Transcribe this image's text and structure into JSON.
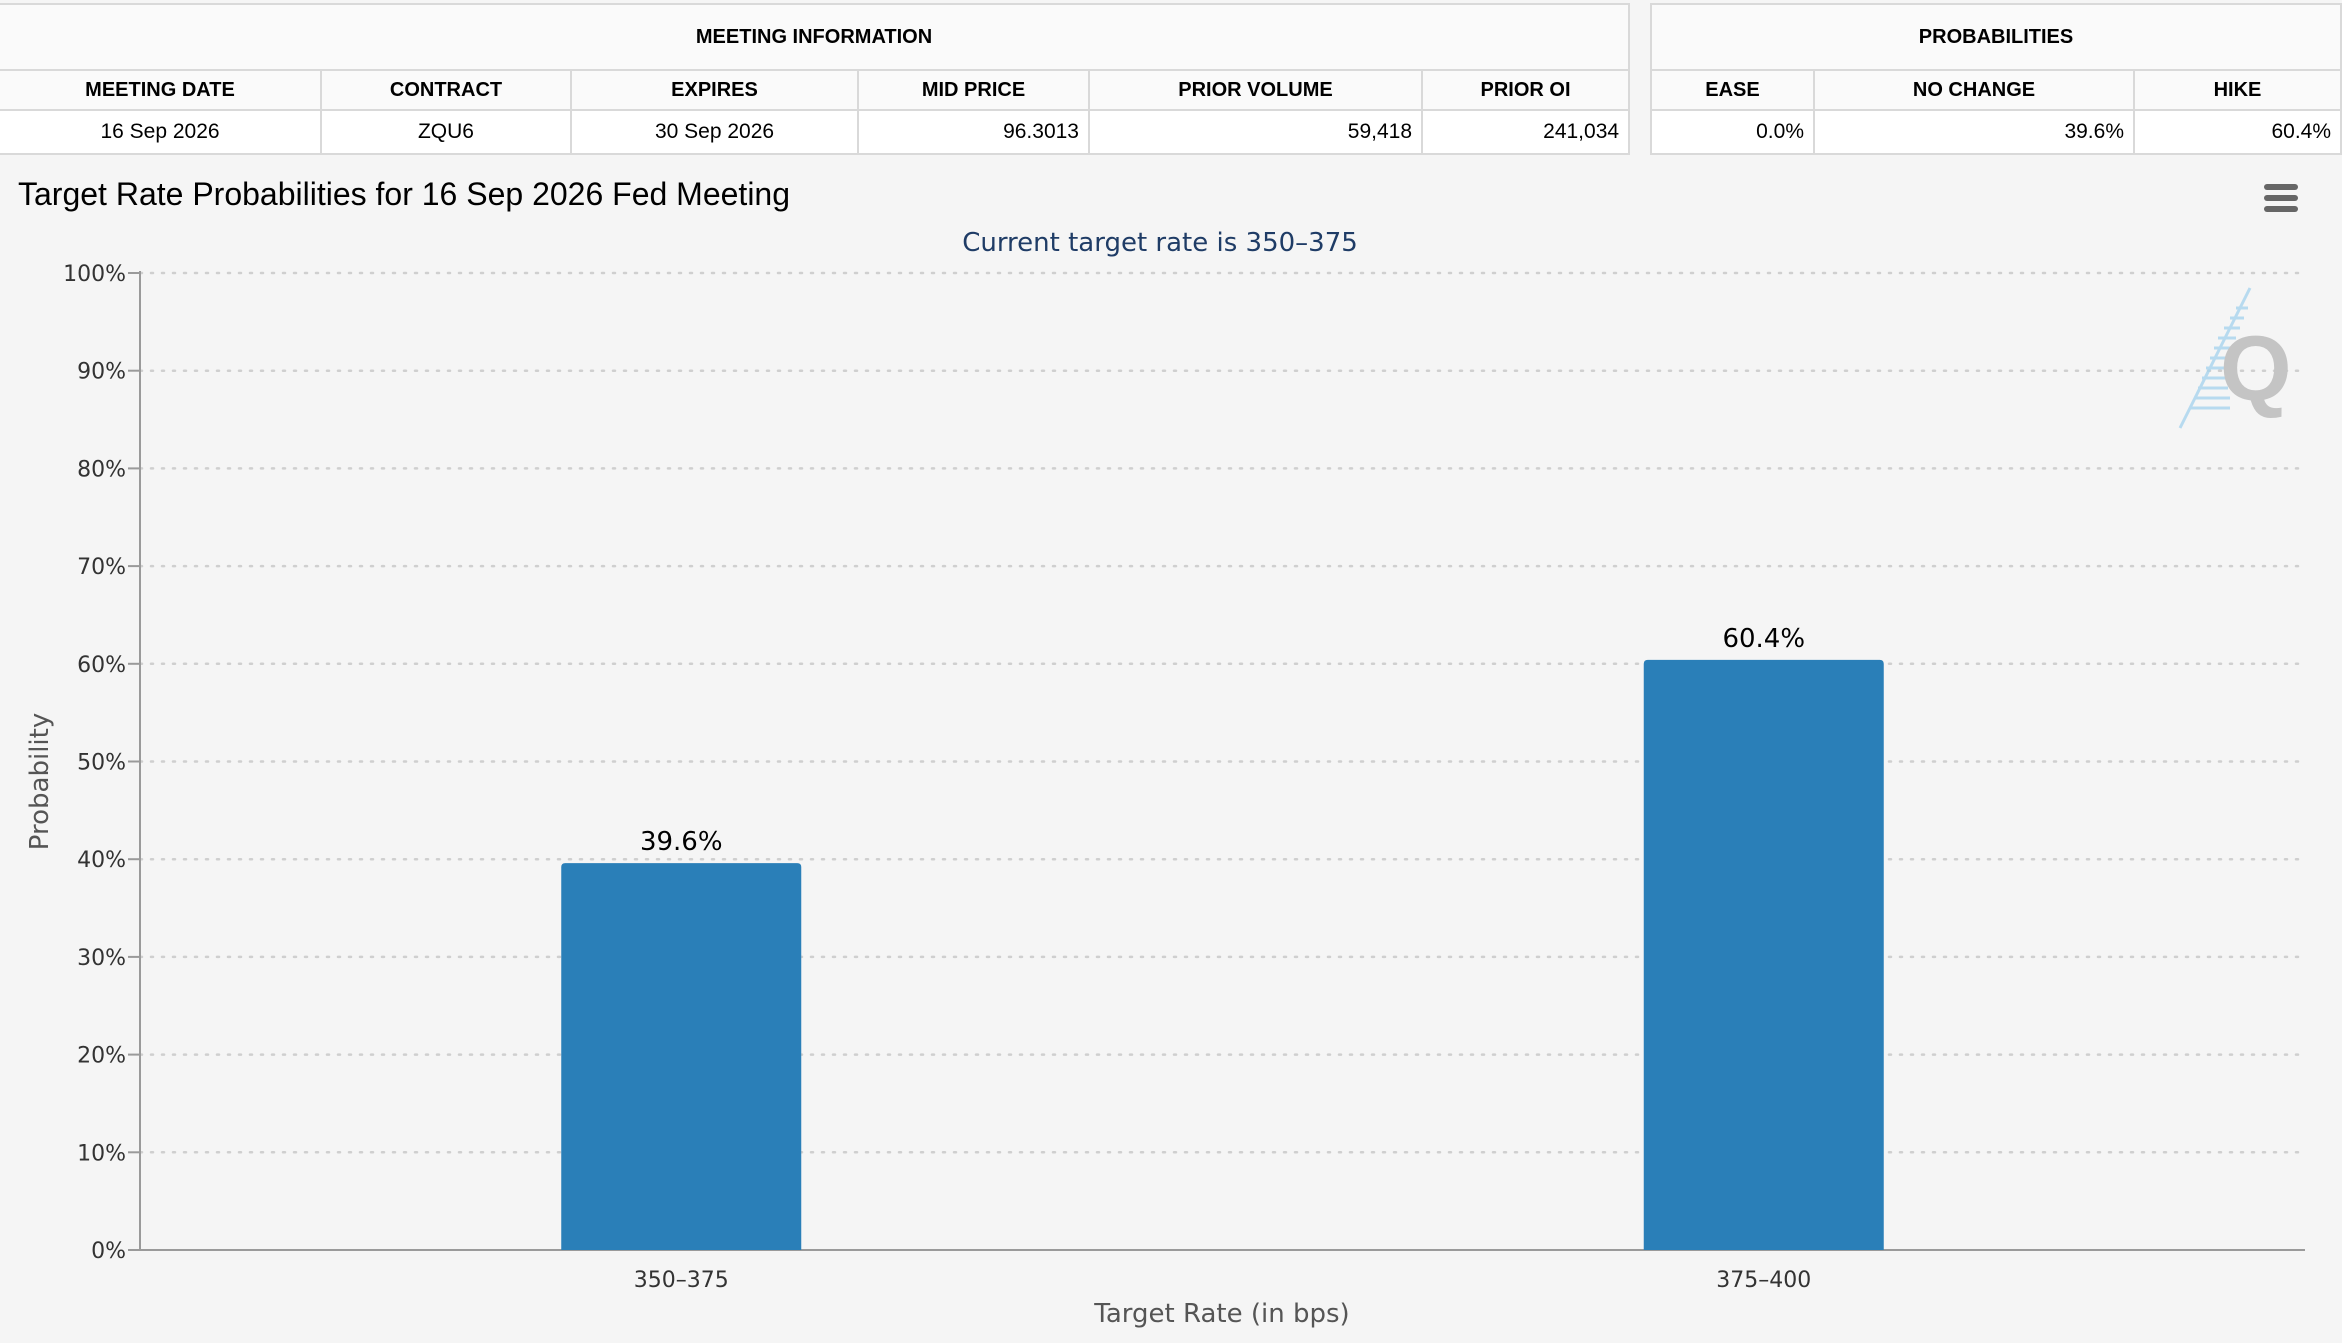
{
  "meeting_table": {
    "group_header": "MEETING INFORMATION",
    "columns": [
      "MEETING DATE",
      "CONTRACT",
      "EXPIRES",
      "MID PRICE",
      "PRIOR VOLUME",
      "PRIOR OI"
    ],
    "row": [
      "16 Sep 2026",
      "ZQU6",
      "30 Sep 2026",
      "96.3013",
      "59,418",
      "241,034"
    ]
  },
  "prob_table": {
    "group_header": "PROBABILITIES",
    "columns": [
      "EASE",
      "NO CHANGE",
      "HIKE"
    ],
    "row": [
      "0.0%",
      "39.6%",
      "60.4%"
    ]
  },
  "chart_title": "Target Rate Probabilities for 16 Sep 2026 Fed Meeting",
  "menu_icon": "hamburger-menu-icon",
  "watermark_icon": "q-logo-watermark",
  "chart_data": {
    "type": "bar",
    "title": "Target Rate Probabilities for 16 Sep 2026 Fed Meeting",
    "subtitle": "Current target rate is 350–375",
    "categories": [
      "350–375",
      "375–400"
    ],
    "values": [
      39.6,
      60.4
    ],
    "data_labels": [
      "39.6%",
      "60.4%"
    ],
    "xlabel": "Target Rate (in bps)",
    "ylabel": "Probability",
    "ylim": [
      0,
      100
    ],
    "yticks": [
      0,
      10,
      20,
      30,
      40,
      50,
      60,
      70,
      80,
      90,
      100
    ],
    "ytick_labels": [
      "0%",
      "10%",
      "20%",
      "30%",
      "40%",
      "50%",
      "60%",
      "70%",
      "80%",
      "90%",
      "100%"
    ],
    "grid": true,
    "bar_color": "#2a7fb8",
    "subtitle_color": "#1f3c66"
  }
}
